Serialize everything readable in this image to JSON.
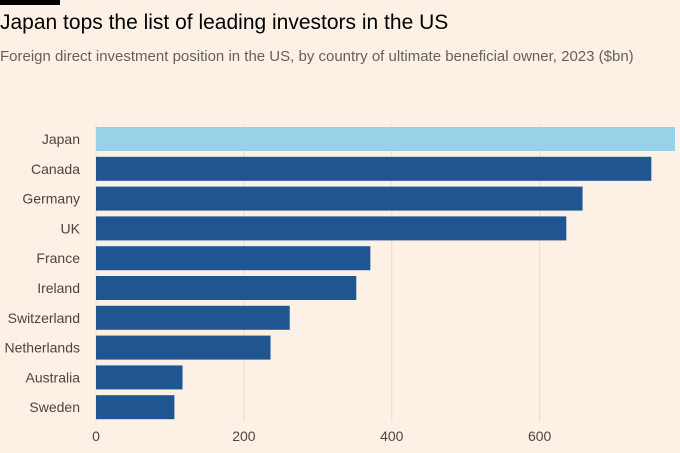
{
  "title": "Japan tops the list of leading investors in the US",
  "subtitle": "Foreign direct investment position in the US, by country of ultimate beneficial owner, 2023 ($bn)",
  "colors": {
    "background": "#fdf1e6",
    "highlight_bar": "#96d3e8",
    "bar": "#1f5591",
    "gridline": "#e9ddd2",
    "label": "#4a4541"
  },
  "chart_data": {
    "type": "bar",
    "orientation": "horizontal",
    "categories": [
      "Japan",
      "Canada",
      "Germany",
      "UK",
      "France",
      "Ireland",
      "Switzerland",
      "Netherlands",
      "Australia",
      "Sweden"
    ],
    "values": [
      783,
      751,
      658,
      636,
      371,
      352,
      262,
      236,
      117,
      106
    ],
    "highlight": "Japan",
    "xlim": [
      0,
      783
    ],
    "xticks": [
      0,
      200,
      400,
      600
    ],
    "grid": true,
    "legend": "none"
  }
}
